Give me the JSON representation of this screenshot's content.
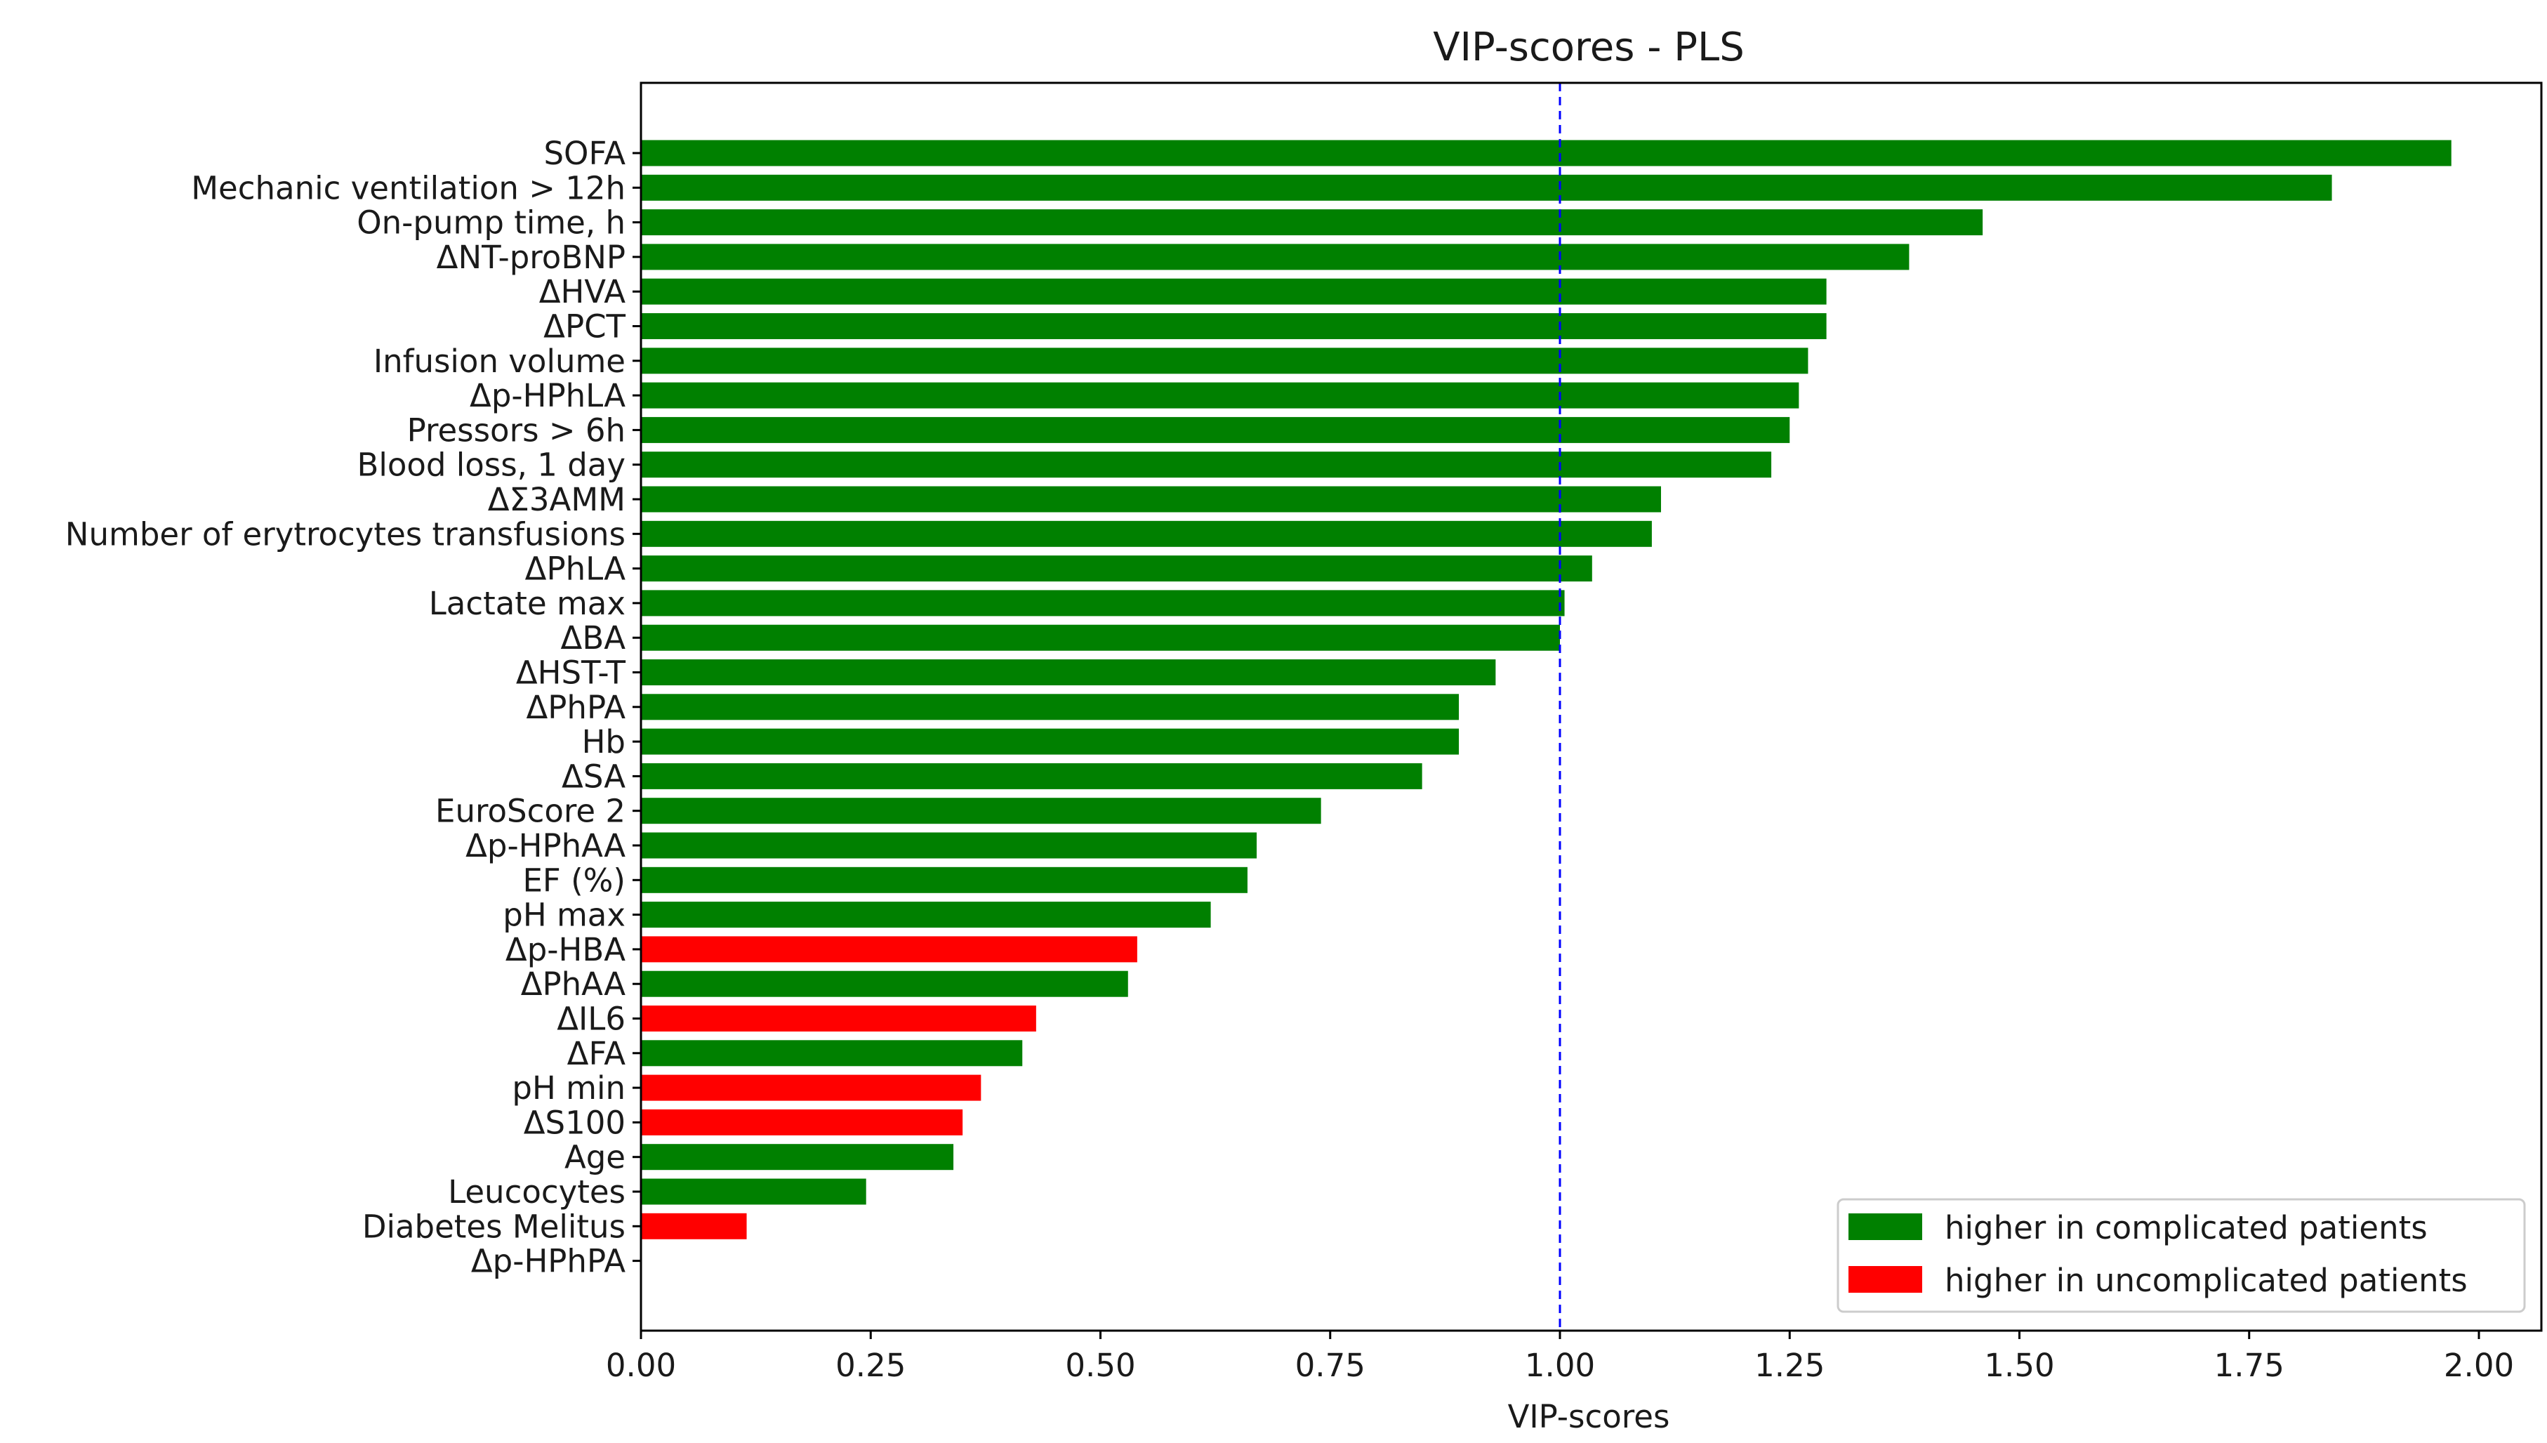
{
  "chart_data": {
    "type": "bar",
    "orientation": "horizontal",
    "title": "VIP-scores - PLS",
    "xlabel": "VIP-scores",
    "ylabel": "",
    "xlim": [
      0,
      2.07
    ],
    "xticks": [
      "0.00",
      "0.25",
      "0.50",
      "0.75",
      "1.00",
      "1.25",
      "1.50",
      "1.75",
      "2.00"
    ],
    "threshold": 1.0,
    "grid": false,
    "legend_position": "lower-right",
    "colors": {
      "higher": "#008000",
      "lower": "#ff0000",
      "threshold": "#0000ff"
    },
    "legend": [
      {
        "label": "higher in complicated patients",
        "color": "#008000"
      },
      {
        "label": "higher in uncomplicated patients",
        "color": "#ff0000"
      }
    ],
    "categories": [
      "SOFA",
      "Mechanic ventilation > 12h",
      "On-pump time, h",
      "ΔNT-proBNP",
      "ΔHVA",
      "ΔPCT",
      "Infusion volume",
      "Δp-HPhLA",
      "Pressors > 6h",
      "Blood loss, 1 day",
      "ΔΣ3AMM",
      "Number of erytrocytes transfusions",
      "ΔPhLA",
      "Lactate max",
      "ΔBA",
      "ΔHST-T",
      "ΔPhPA",
      "Hb",
      "ΔSA",
      "EuroScore 2",
      "Δp-HPhAA",
      "EF (%)",
      "pH max",
      "Δp-HBA",
      "ΔPhAA",
      "ΔIL6",
      "ΔFA",
      "pH min",
      "ΔS100",
      "Age",
      "Leucocytes",
      "Diabetes Melitus",
      "Δp-HPhPA"
    ],
    "values": [
      1.97,
      1.84,
      1.46,
      1.38,
      1.29,
      1.29,
      1.27,
      1.26,
      1.25,
      1.23,
      1.11,
      1.1,
      1.035,
      1.005,
      1.0,
      0.93,
      0.89,
      0.89,
      0.85,
      0.74,
      0.67,
      0.66,
      0.62,
      0.54,
      0.53,
      0.43,
      0.415,
      0.37,
      0.35,
      0.34,
      0.245,
      0.115,
      0.0
    ],
    "groups": [
      "higher",
      "higher",
      "higher",
      "higher",
      "higher",
      "higher",
      "higher",
      "higher",
      "higher",
      "higher",
      "higher",
      "higher",
      "higher",
      "higher",
      "higher",
      "higher",
      "higher",
      "higher",
      "higher",
      "higher",
      "higher",
      "higher",
      "higher",
      "lower",
      "higher",
      "lower",
      "higher",
      "lower",
      "lower",
      "higher",
      "higher",
      "lower",
      "higher"
    ]
  }
}
